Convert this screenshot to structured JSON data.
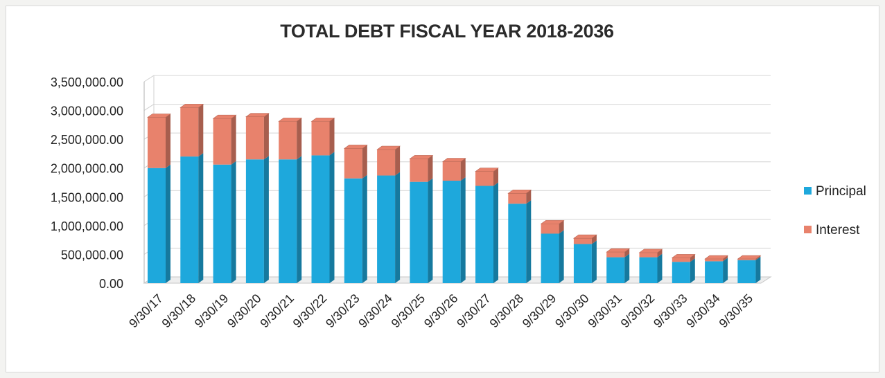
{
  "chart_data": {
    "type": "bar",
    "stacked": true,
    "title": "TOTAL DEBT FISCAL YEAR 2018-2036",
    "xlabel": "",
    "ylabel": "",
    "ylim": [
      0,
      3500000
    ],
    "yticks": [
      "0.00",
      "500,000.00",
      "1,000,000.00",
      "1,500,000.00",
      "2,000,000.00",
      "2,500,000.00",
      "3,000,000.00",
      "3,500,000.00"
    ],
    "grid": true,
    "legend_position": "right",
    "categories": [
      "9/30/17",
      "9/30/18",
      "9/30/19",
      "9/30/20",
      "9/30/21",
      "9/30/22",
      "9/30/23",
      "9/30/24",
      "9/30/25",
      "9/30/26",
      "9/30/27",
      "9/30/28",
      "9/30/29",
      "9/30/30",
      "9/30/31",
      "9/30/32",
      "9/30/33",
      "9/30/34",
      "9/30/35"
    ],
    "series": [
      {
        "name": "Principal",
        "color": "#1ea8dc",
        "values": [
          2000000,
          2200000,
          2060000,
          2150000,
          2150000,
          2220000,
          1820000,
          1870000,
          1760000,
          1780000,
          1690000,
          1380000,
          860000,
          680000,
          450000,
          450000,
          370000,
          380000,
          400000
        ]
      },
      {
        "name": "Interest",
        "color": "#e8826c",
        "values": [
          880000,
          850000,
          800000,
          740000,
          660000,
          590000,
          520000,
          450000,
          400000,
          330000,
          250000,
          180000,
          170000,
          100000,
          90000,
          80000,
          70000,
          40000,
          20000
        ]
      }
    ]
  }
}
